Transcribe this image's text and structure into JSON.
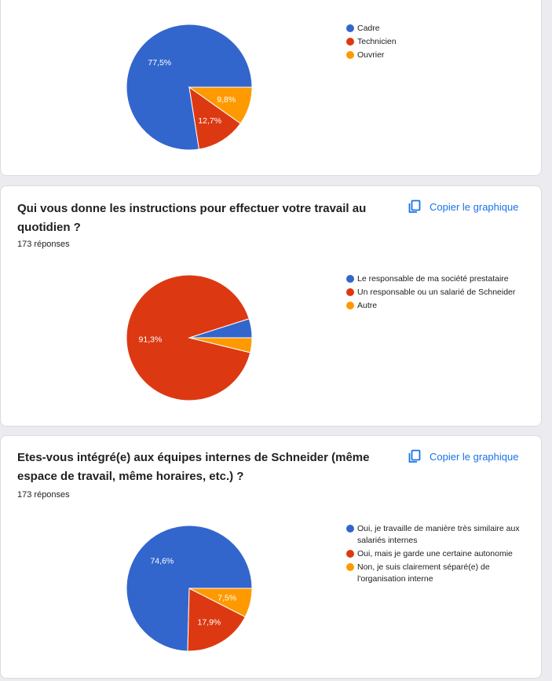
{
  "colors": {
    "blue": "#3366cc",
    "red": "#dc3912",
    "orange": "#ff9900"
  },
  "copy_label": "Copier le graphique",
  "charts": [
    {
      "title": "",
      "responses": "",
      "legend": [
        "Cadre",
        "Technicien",
        "Ouvrier"
      ]
    },
    {
      "title": "Qui vous donne les instructions pour effectuer votre travail au quotidien ?",
      "responses": "173 réponses",
      "legend": [
        "Le responsable de ma société prestataire",
        "Un responsable ou un salarié de Schneider",
        "Autre"
      ]
    },
    {
      "title": "Etes-vous intégré(e) aux équipes internes de Schneider (même espace de travail, même horaires, etc.) ?",
      "responses": "173 réponses",
      "legend": [
        "Oui, je travaille de manière très similaire aux salariés internes",
        "Oui, mais je garde une certaine autonomie",
        "Non, je suis clairement séparé(e) de l'organisation interne"
      ]
    }
  ],
  "chart_data": [
    {
      "type": "pie",
      "categories": [
        "Cadre",
        "Technicien",
        "Ouvrier"
      ],
      "values": [
        77.5,
        12.7,
        9.8
      ],
      "labels": [
        "77,5%",
        "12,7%",
        "9,8%"
      ],
      "legend_position": "right"
    },
    {
      "type": "pie",
      "title": "Qui vous donne les instructions pour effectuer votre travail au quotidien ?",
      "categories": [
        "Le responsable de ma société prestataire",
        "Un responsable ou un salarié de Schneider",
        "Autre"
      ],
      "values": [
        4.9,
        91.3,
        3.8
      ],
      "labels": [
        "",
        "91,3%",
        ""
      ],
      "legend_position": "right"
    },
    {
      "type": "pie",
      "title": "Etes-vous intégré(e) aux équipes internes de Schneider (même espace de travail, même horaires, etc.) ?",
      "categories": [
        "Oui, je travaille de manière très similaire aux salariés internes",
        "Oui, mais je garde une certaine autonomie",
        "Non, je suis clairement séparé(e) de l'organisation interne"
      ],
      "values": [
        74.6,
        17.9,
        7.5
      ],
      "labels": [
        "74,6%",
        "17,9%",
        "7,5%"
      ],
      "legend_position": "right"
    }
  ]
}
